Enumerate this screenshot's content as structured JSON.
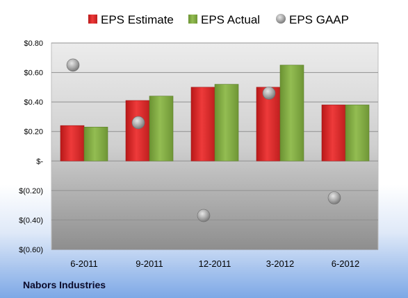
{
  "company": "Nabors Industries",
  "colors": {
    "estimate": "#d92a2a",
    "actual": "#7ba33d",
    "gaap": "#9a9a9a"
  },
  "chart_data": {
    "type": "bar",
    "categories": [
      "6-2011",
      "9-2011",
      "12-2011",
      "3-2012",
      "6-2012"
    ],
    "series": [
      {
        "name": "EPS Estimate",
        "kind": "bar",
        "values": [
          0.24,
          0.41,
          0.5,
          0.5,
          0.38
        ]
      },
      {
        "name": "EPS Actual",
        "kind": "bar",
        "values": [
          0.23,
          0.44,
          0.52,
          0.65,
          0.38
        ]
      },
      {
        "name": "EPS GAAP",
        "kind": "scatter",
        "values": [
          0.65,
          0.26,
          -0.37,
          0.46,
          -0.25
        ]
      }
    ],
    "ylim": [
      -0.6,
      0.8
    ],
    "yticks": [
      0.8,
      0.6,
      0.4,
      0.2,
      0,
      -0.2,
      -0.4,
      -0.6
    ],
    "ytick_labels": [
      "$0.80",
      "$0.60",
      "$0.40",
      "$0.20",
      "$-",
      "$(0.20)",
      "$(0.40)",
      "$(0.60)"
    ],
    "grid": true,
    "legend": "top"
  }
}
